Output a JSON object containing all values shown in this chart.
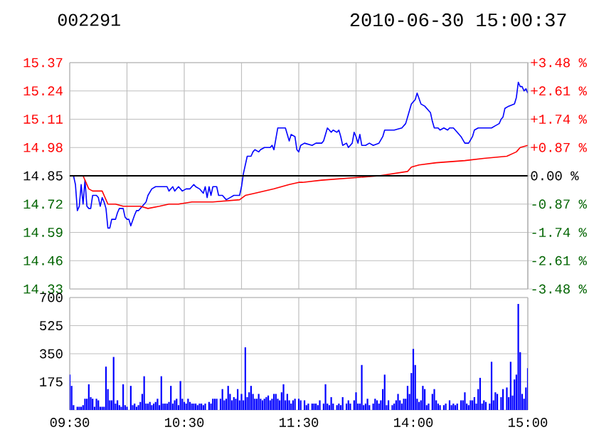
{
  "chart_data": [
    {
      "type": "line",
      "title": "002291",
      "subtitle": "2010-06-30 15:00:37",
      "categories": [
        null,
        null,
        null,
        null,
        null,
        null,
        null,
        null,
        null,
        null,
        null,
        null,
        null,
        null,
        null,
        null,
        null,
        null,
        null,
        null,
        null,
        null,
        null,
        null,
        null,
        null,
        null,
        null,
        null,
        null,
        null,
        null,
        null,
        null,
        null,
        null,
        null,
        null,
        null,
        null,
        null,
        null,
        null,
        null,
        null,
        null,
        null,
        null,
        null,
        null,
        null,
        null,
        null,
        null,
        null,
        null,
        null,
        null,
        null,
        null,
        null,
        null,
        null,
        null,
        null,
        null,
        null,
        null,
        null,
        null,
        null,
        null,
        null,
        null,
        null,
        null,
        null,
        null,
        null,
        null,
        null,
        null,
        null,
        null,
        null,
        null,
        null,
        null,
        null,
        null,
        null,
        null,
        null,
        null,
        null,
        null,
        null,
        null,
        null,
        null,
        null,
        null,
        null,
        null,
        null,
        null,
        null,
        null,
        null,
        null,
        null,
        null,
        null,
        null,
        null,
        null,
        null,
        null,
        null,
        null,
        null,
        null,
        null,
        null,
        null,
        null,
        null,
        null,
        null,
        null,
        null,
        null,
        null,
        null,
        null,
        null,
        null,
        null,
        null,
        null,
        null,
        null,
        null,
        null,
        null,
        null,
        null,
        null,
        null,
        null,
        null,
        null,
        null,
        null,
        null,
        null,
        null,
        null,
        null,
        null,
        null,
        null,
        null,
        null,
        null,
        null,
        null,
        null,
        null,
        null,
        null,
        null,
        null,
        null,
        null,
        null,
        null,
        null,
        null,
        null,
        null,
        null,
        null,
        null,
        null,
        null,
        null,
        null,
        null,
        null,
        null,
        null,
        null,
        null,
        null,
        null,
        null,
        null,
        null,
        null,
        null,
        null,
        null,
        null,
        null,
        null,
        null,
        null,
        null,
        null,
        null,
        null,
        null,
        null,
        null,
        null,
        null,
        null,
        null,
        null,
        null,
        null,
        null,
        null,
        null,
        null,
        null,
        null,
        null,
        null,
        null,
        null,
        null,
        null,
        null,
        null,
        null,
        null,
        null,
        null,
        null
      ],
      "ylim": [
        14.33,
        15.37
      ],
      "yticks": [
        14.33,
        14.46,
        14.59,
        14.72,
        14.85,
        14.98,
        15.11,
        15.24,
        15.37
      ],
      "y2lim": [
        -3.48,
        3.48
      ],
      "y2ticks": [
        {
          "value": -3.48,
          "label": "-3.48 %"
        },
        {
          "value": -2.61,
          "label": "-2.61 %"
        },
        {
          "value": -1.74,
          "label": "-1.74 %"
        },
        {
          "value": -0.87,
          "label": "-0.87 %"
        },
        {
          "value": 0,
          "label": "0.00 %"
        },
        {
          "value": 0.87,
          "label": "+0.87 %"
        },
        {
          "value": 1.74,
          "label": "+1.74 %"
        },
        {
          "value": 2.61,
          "label": "+2.61 %"
        },
        {
          "value": 3.48,
          "label": "+3.48 %"
        }
      ],
      "tick_labels": "y",
      "grid": true,
      "ref_lines": [
        {
          "axis": "y",
          "value": 14.85,
          "color": "#000000"
        }
      ],
      "series": [
        {
          "color": "#0000ff",
          "values": [
            null,
            14.85,
            14.85,
            14.81,
            14.69,
            14.71,
            14.81,
            14.72,
            14.83,
            14.71,
            14.7,
            14.7,
            14.76,
            null,
            14.76,
            14.75,
            14.71,
            14.75,
            14.73,
            14.7,
            14.61,
            14.61,
            14.65,
            null,
            14.65,
            14.68,
            14.7,
            null,
            14.7,
            14.66,
            14.65,
            14.65,
            14.62,
            null,
            14.67,
            14.69,
            14.69,
            null,
            14.71,
            null,
            14.73,
            14.76,
            null,
            14.79,
            null,
            14.8,
            null,
            null,
            null,
            null,
            null,
            14.8,
            14.78,
            null,
            14.8,
            14.78,
            null,
            14.8,
            null,
            14.78,
            null,
            14.79,
            null,
            14.79,
            null,
            14.81,
            14.8,
            null,
            14.79,
            null,
            14.77,
            14.8,
            14.75,
            14.8,
            14.76,
            14.8,
            null,
            14.8,
            14.76,
            null,
            14.76,
            null,
            14.74,
            null,
            14.75,
            null,
            14.76,
            null,
            null,
            14.76,
            14.8,
            14.86,
            null,
            14.94,
            null,
            14.94,
            14.96,
            14.97,
            null,
            14.96,
            14.97,
            null,
            14.98,
            null,
            null,
            14.98,
            14.99,
            14.97,
            null,
            15.07,
            null,
            15.07,
            null,
            15.07,
            null,
            15.01,
            15.04,
            null,
            15.03,
            14.97,
            14.96,
            14.99,
            null,
            15.0,
            null,
            null,
            null,
            14.99,
            null,
            15.0,
            null,
            null,
            15.0,
            15.01,
            null,
            15.07,
            null,
            15.05,
            15.06,
            null,
            15.05,
            15.06,
            15.03,
            14.99,
            null,
            15.0,
            14.98,
            null,
            15.0,
            15.05,
            15.03,
            15.0,
            15.04,
            14.99,
            null,
            14.99,
            null,
            15.0,
            null,
            14.99,
            null,
            null,
            15.0,
            null,
            15.03,
            15.06,
            null,
            null,
            null,
            null,
            15.06,
            null,
            null,
            null,
            15.07,
            null,
            15.09,
            15.12,
            null,
            15.18,
            null,
            15.2,
            15.23,
            null,
            15.18,
            null,
            15.17,
            null,
            15.15,
            15.14,
            15.1,
            15.07,
            null,
            15.07,
            15.06,
            null,
            15.07,
            null,
            15.06,
            15.07,
            null,
            15.07,
            null,
            15.05,
            null,
            15.03,
            null,
            15.0,
            null,
            15.0,
            null,
            15.03,
            15.06,
            null,
            15.07,
            null,
            15.07,
            null,
            15.07,
            null,
            15.07,
            15.07,
            null,
            15.08,
            null,
            15.09,
            15.11,
            15.12,
            15.16,
            null,
            15.17,
            null,
            null,
            15.18,
            15.21,
            15.28,
            15.26,
            15.26,
            15.24,
            15.25,
            15.23
          ]
        },
        {
          "color": "#ff0000",
          "values": [
            null,
            14.85,
            null,
            null,
            null,
            null,
            null,
            14.85,
            null,
            null,
            14.79,
            null,
            14.78,
            null,
            null,
            null,
            null,
            14.78,
            null,
            null,
            14.72,
            null,
            null,
            null,
            14.72,
            null,
            null,
            null,
            14.71,
            null,
            null,
            null,
            null,
            null,
            null,
            null,
            null,
            14.71,
            null,
            null,
            null,
            14.7,
            null,
            null,
            null,
            null,
            null,
            14.71,
            null,
            null,
            null,
            null,
            14.72,
            null,
            null,
            null,
            null,
            14.72,
            null,
            null,
            null,
            null,
            null,
            null,
            14.73,
            null,
            null,
            null,
            null,
            null,
            null,
            null,
            null,
            null,
            null,
            14.73,
            null,
            null,
            null,
            null,
            null,
            null,
            null,
            null,
            null,
            null,
            null,
            null,
            null,
            14.74,
            null,
            null,
            14.76,
            null,
            null,
            null,
            null,
            14.77,
            null,
            null,
            null,
            null,
            null,
            null,
            null,
            null,
            null,
            14.79,
            null,
            null,
            null,
            null,
            null,
            null,
            null,
            14.81,
            null,
            null,
            null,
            null,
            14.82,
            null,
            14.82,
            null,
            null,
            null,
            null,
            null,
            null,
            null,
            null,
            null,
            14.83,
            null,
            null,
            null,
            null,
            null,
            null,
            null,
            null,
            null,
            null,
            null,
            null,
            null,
            null,
            14.84,
            null,
            null,
            null,
            null,
            null,
            null,
            null,
            null,
            null,
            null,
            null,
            null,
            null,
            null,
            14.85,
            null,
            null,
            null,
            null,
            null,
            null,
            null,
            null,
            null,
            null,
            null,
            null,
            null,
            null,
            14.87,
            null,
            14.89,
            null,
            null,
            null,
            14.9,
            null,
            null,
            null,
            null,
            null,
            null,
            null,
            null,
            14.91,
            null,
            null,
            null,
            null,
            null,
            null,
            null,
            null,
            null,
            null,
            null,
            null,
            null,
            null,
            14.92,
            null,
            null,
            null,
            null,
            null,
            null,
            null,
            null,
            null,
            14.93,
            null,
            null,
            null,
            null,
            null,
            null,
            null,
            null,
            null,
            null,
            null,
            14.94,
            null,
            null,
            null,
            null,
            14.96,
            null,
            14.98,
            null,
            null,
            null,
            14.99
          ]
        }
      ]
    },
    {
      "type": "bar",
      "categories": [
        "09:30",
        null,
        null,
        null,
        null,
        null,
        null,
        null,
        null,
        null,
        null,
        null,
        null,
        null,
        null,
        null,
        null,
        null,
        null,
        null,
        null,
        null,
        null,
        null,
        null,
        null,
        null,
        null,
        null,
        null,
        null,
        null,
        null,
        null,
        null,
        null,
        null,
        null,
        null,
        null,
        null,
        null,
        null,
        null,
        null,
        null,
        null,
        null,
        null,
        null,
        null,
        null,
        null,
        null,
        null,
        null,
        null,
        null,
        null,
        null,
        "10:30",
        null,
        null,
        null,
        null,
        null,
        null,
        null,
        null,
        null,
        null,
        null,
        null,
        null,
        null,
        null,
        null,
        null,
        null,
        null,
        null,
        null,
        null,
        null,
        null,
        null,
        null,
        null,
        null,
        null,
        null,
        null,
        null,
        null,
        null,
        null,
        null,
        null,
        null,
        null,
        null,
        null,
        null,
        null,
        null,
        null,
        null,
        null,
        null,
        null,
        null,
        null,
        null,
        null,
        null,
        null,
        null,
        null,
        null,
        null,
        "11:30",
        null,
        null,
        null,
        null,
        null,
        null,
        null,
        null,
        null,
        null,
        null,
        null,
        null,
        null,
        null,
        null,
        null,
        null,
        null,
        null,
        null,
        null,
        null,
        null,
        null,
        null,
        null,
        null,
        null,
        null,
        null,
        null,
        null,
        null,
        null,
        null,
        null,
        null,
        null,
        null,
        null,
        null,
        null,
        null,
        null,
        null,
        null,
        null,
        null,
        null,
        null,
        null,
        null,
        null,
        null,
        null,
        null,
        null,
        null,
        "14:00",
        null,
        null,
        null,
        null,
        null,
        null,
        null,
        null,
        null,
        null,
        null,
        null,
        null,
        null,
        null,
        null,
        null,
        null,
        null,
        null,
        null,
        null,
        null,
        null,
        null,
        null,
        null,
        null,
        null,
        null,
        null,
        null,
        null,
        null,
        null,
        null,
        null,
        null,
        null,
        null,
        null,
        null,
        null,
        null,
        null,
        null,
        null,
        null,
        null,
        null,
        null,
        null,
        null,
        null,
        null,
        null,
        null,
        null,
        null,
        "15:00"
      ],
      "ylim": [
        0,
        700
      ],
      "yticks": [
        175,
        350,
        525,
        700
      ],
      "grid": true,
      "series": [
        {
          "color": "#0000ff",
          "values": [
            220,
            150,
            30,
            null,
            20,
            20,
            20,
            30,
            70,
            70,
            160,
            80,
            70,
            20,
            70,
            60,
            20,
            20,
            20,
            270,
            130,
            60,
            60,
            330,
            40,
            60,
            30,
            20,
            160,
            30,
            20,
            null,
            150,
            30,
            40,
            20,
            30,
            50,
            100,
            210,
            40,
            40,
            50,
            30,
            40,
            50,
            70,
            30,
            210,
            40,
            40,
            40,
            50,
            150,
            40,
            60,
            70,
            30,
            180,
            70,
            50,
            40,
            70,
            50,
            40,
            40,
            40,
            30,
            40,
            40,
            30,
            40,
            null,
            50,
            40,
            70,
            70,
            70,
            null,
            70,
            130,
            60,
            70,
            150,
            100,
            60,
            80,
            70,
            130,
            60,
            100,
            60,
            390,
            80,
            110,
            150,
            100,
            70,
            70,
            100,
            70,
            60,
            70,
            80,
            90,
            60,
            70,
            100,
            100,
            70,
            60,
            110,
            160,
            60,
            100,
            60,
            40,
            60,
            70,
            null,
            70,
            60,
            null,
            60,
            30,
            40,
            null,
            40,
            40,
            40,
            30,
            60,
            null,
            40,
            160,
            40,
            30,
            80,
            40,
            null,
            30,
            40,
            30,
            80,
            null,
            40,
            60,
            40,
            null,
            60,
            110,
            40,
            40,
            280,
            30,
            40,
            70,
            30,
            null,
            40,
            70,
            60,
            40,
            60,
            130,
            220,
            30,
            60,
            null,
            30,
            40,
            60,
            100,
            60,
            40,
            70,
            70,
            150,
            100,
            230,
            380,
            280,
            70,
            50,
            60,
            150,
            130,
            30,
            40,
            null,
            100,
            130,
            60,
            40,
            30,
            null,
            30,
            40,
            null,
            60,
            30,
            40,
            30,
            40,
            null,
            60,
            60,
            110,
            40,
            30,
            60,
            60,
            80,
            40,
            130,
            200,
            40,
            60,
            50,
            null,
            40,
            300,
            60,
            110,
            100,
            null,
            80,
            130,
            null,
            140,
            80,
            300,
            90,
            190,
            220,
            660,
            360,
            100,
            70,
            140,
            260
          ]
        }
      ]
    }
  ]
}
